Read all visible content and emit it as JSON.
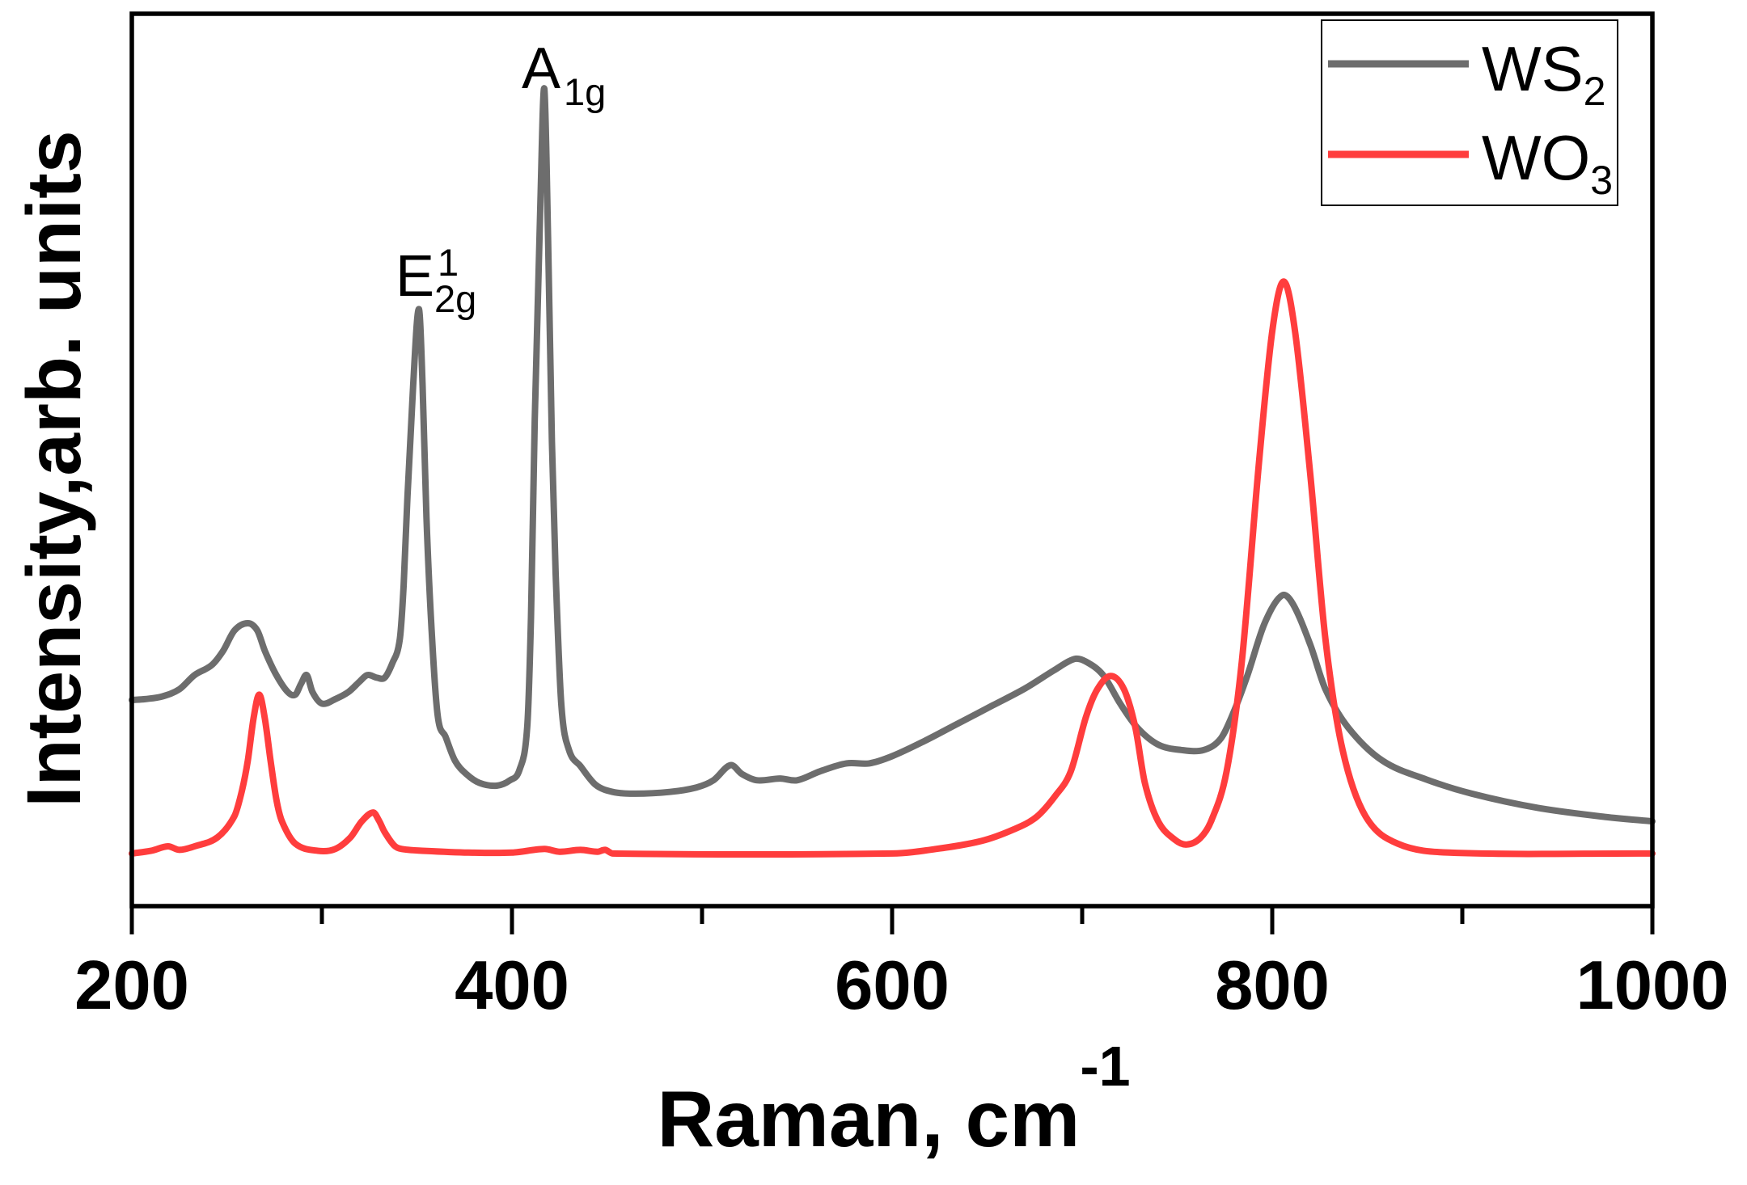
{
  "chart_data": {
    "type": "line",
    "xlabel": {
      "text": "Raman, cm",
      "superscript": "-1"
    },
    "ylabel": "Intensity,arb. units",
    "xlim": [
      200,
      1000
    ],
    "ylim": [
      0,
      100
    ],
    "x_ticks": [
      200,
      400,
      600,
      800,
      1000
    ],
    "x_minor_ticks": [
      300,
      500,
      700,
      900
    ],
    "y_ticks": [],
    "grid": false,
    "legend_position": "top-right",
    "series": [
      {
        "name": {
          "text": "WS",
          "subscript": "2"
        },
        "color": "#6d6d6d",
        "x": [
          200,
          207,
          216,
          225,
          233,
          242,
          248,
          254,
          261,
          266,
          270,
          276,
          282,
          286,
          289,
          292,
          295,
          300,
          307,
          314,
          320,
          324,
          329,
          333,
          337,
          341,
          343,
          345,
          348,
          351,
          353,
          355,
          358,
          361,
          365,
          370,
          376,
          383,
          392,
          399,
          404,
          408,
          410,
          412,
          415,
          417,
          419,
          421,
          423,
          426,
          430,
          436,
          444,
          453,
          465,
          483,
          497,
          506,
          515,
          521,
          529,
          541,
          550,
          562,
          576,
          588,
          600,
          617,
          635,
          653,
          670,
          685,
          696,
          702,
          711,
          720,
          729,
          740,
          752,
          764,
          773,
          780,
          787,
          796,
          805,
          811,
          820,
          828,
          840,
          858,
          881,
          905,
          940,
          975,
          1000
        ],
        "y": [
          23.1,
          23.2,
          23.5,
          24.3,
          25.9,
          27.0,
          28.6,
          30.9,
          31.7,
          30.9,
          28.6,
          25.9,
          24.0,
          23.7,
          24.9,
          25.9,
          24.0,
          22.7,
          23.2,
          24.0,
          25.2,
          25.9,
          25.6,
          25.6,
          27.2,
          29.9,
          36.0,
          45.9,
          58.3,
          66.9,
          58.3,
          43.5,
          29.9,
          21.2,
          19.0,
          16.3,
          14.8,
          13.8,
          13.5,
          14.1,
          15.3,
          20.0,
          32.3,
          54.6,
          79.3,
          91.6,
          75.0,
          52.0,
          37.3,
          22.5,
          17.5,
          15.7,
          13.6,
          12.8,
          12.6,
          12.8,
          13.3,
          14.1,
          15.8,
          14.8,
          14.1,
          14.3,
          14.1,
          15.1,
          16.0,
          16.0,
          16.8,
          18.5,
          20.5,
          22.5,
          24.4,
          26.4,
          27.7,
          27.4,
          25.9,
          22.7,
          20.0,
          18.1,
          17.5,
          17.5,
          18.8,
          21.9,
          25.9,
          31.7,
          34.8,
          33.8,
          29.3,
          24.3,
          20.0,
          16.3,
          14.2,
          12.6,
          11.0,
          10.0,
          9.5
        ]
      },
      {
        "name": {
          "text": "WO",
          "subscript": "3"
        },
        "color": "#ff3d3d",
        "x": [
          200,
          210,
          219,
          225,
          233,
          245,
          254,
          258,
          261,
          264,
          267,
          270,
          273,
          276,
          279,
          286,
          298,
          307,
          315,
          321,
          327,
          330,
          333,
          338,
          342,
          354,
          377,
          400,
          417,
          425,
          436,
          445,
          449,
          453,
          600,
          623,
          647,
          664,
          676,
          686,
          694,
          702,
          708,
          715,
          722,
          728,
          733,
          740,
          749,
          755,
          762,
          768,
          776,
          784,
          793,
          800,
          806,
          812,
          820,
          828,
          837,
          849,
          866,
          893,
          1000
        ],
        "y": [
          5.9,
          6.2,
          6.7,
          6.3,
          6.7,
          7.7,
          10.1,
          13.0,
          16.3,
          21.0,
          23.7,
          21.0,
          16.3,
          12.0,
          9.5,
          7.0,
          6.2,
          6.4,
          7.7,
          9.5,
          10.5,
          9.6,
          8.3,
          6.8,
          6.4,
          6.2,
          6.0,
          6.0,
          6.4,
          6.1,
          6.3,
          6.1,
          6.3,
          5.9,
          5.9,
          6.4,
          7.3,
          8.6,
          10.0,
          12.4,
          15.1,
          21.2,
          24.3,
          25.8,
          24.3,
          20.0,
          13.8,
          9.5,
          7.4,
          6.9,
          7.6,
          9.6,
          15.1,
          27.4,
          49.6,
          64.4,
          70.0,
          64.4,
          48.4,
          29.9,
          17.5,
          10.1,
          7.0,
          6.0,
          5.9
        ]
      }
    ],
    "annotations": [
      {
        "text": "E",
        "superscript": "1",
        "subscript": "2g"
      },
      {
        "text": "A",
        "subscript": "1g"
      }
    ]
  }
}
